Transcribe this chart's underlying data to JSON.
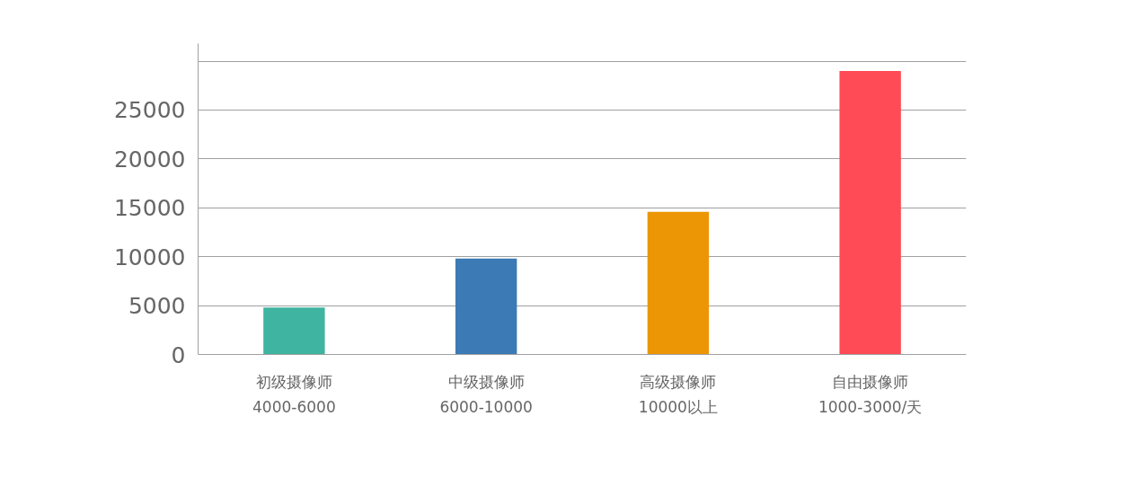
{
  "chart_data": {
    "type": "bar",
    "categories": [
      "初级摄像师\n4000-6000",
      "中级摄像师\n6000-10000",
      "高级摄像师\n10000以上",
      "自由摄像师\n1000-3000/天"
    ],
    "values": [
      4800,
      9800,
      14600,
      29000
    ],
    "colors": [
      "#3eb4a1",
      "#3b7ab4",
      "#ec9606",
      "#ff4b55"
    ],
    "ylim": [
      0,
      31800
    ],
    "yticks": [
      0,
      5000,
      10000,
      15000,
      20000,
      25000,
      {
        "value": 30000,
        "label": null
      }
    ],
    "grid": "y"
  }
}
